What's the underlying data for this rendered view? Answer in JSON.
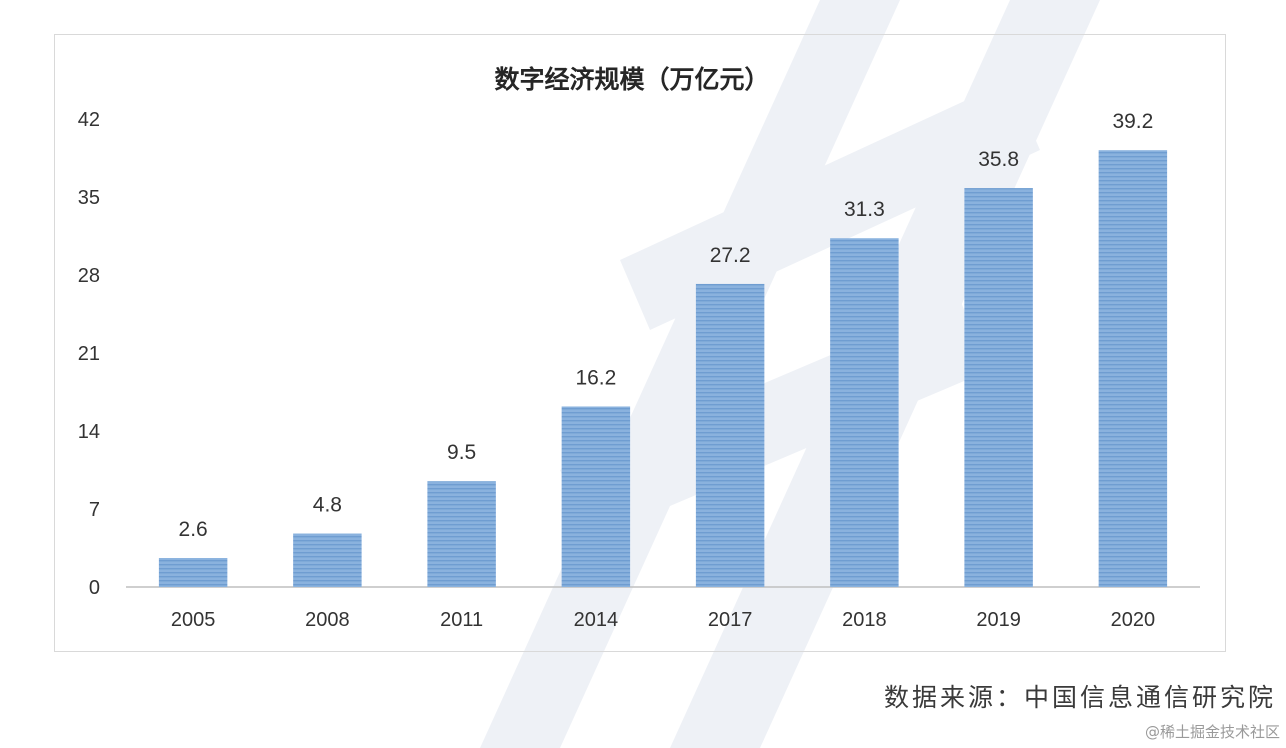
{
  "chart_data": {
    "type": "bar",
    "title": "数字经济规模（万亿元）",
    "categories": [
      "2005",
      "2008",
      "2011",
      "2014",
      "2017",
      "2018",
      "2019",
      "2020"
    ],
    "values": [
      2.6,
      4.8,
      9.5,
      16.2,
      27.2,
      31.3,
      35.8,
      39.2
    ],
    "data_labels": [
      "2.6",
      "4.8",
      "9.5",
      "16.2",
      "27.2",
      "31.3",
      "35.8",
      "39.2"
    ],
    "yticks": [
      0,
      7,
      14,
      21,
      28,
      35,
      42
    ],
    "ylim": [
      0,
      42
    ],
    "xlabel": "",
    "ylabel": "",
    "grid": false,
    "legend": "none",
    "bar_color": "#7aa6d6"
  },
  "source_note": "数据来源：中国信息通信研究院",
  "watermark_credit": "@稀土掘金技术社区"
}
